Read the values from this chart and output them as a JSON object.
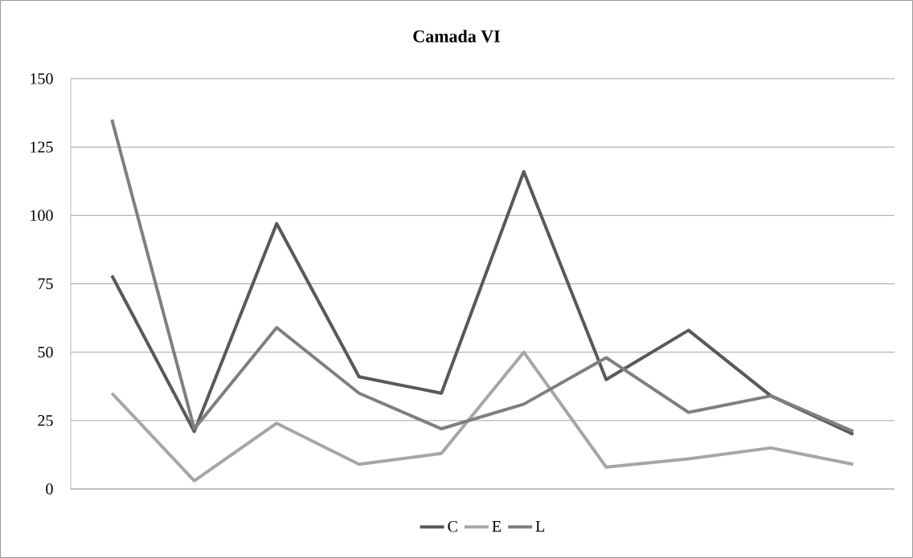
{
  "chart_data": {
    "type": "line",
    "title": "Camada VI",
    "categories": [
      null,
      null,
      null,
      null,
      null,
      null,
      null,
      null,
      null,
      null
    ],
    "series": [
      {
        "name": "C",
        "color": "#595959",
        "values": [
          78,
          21,
          97,
          41,
          35,
          116,
          40,
          58,
          34,
          20
        ]
      },
      {
        "name": "E",
        "color": "#a6a6a6",
        "values": [
          35,
          3,
          24,
          9,
          13,
          50,
          8,
          11,
          15,
          9
        ]
      },
      {
        "name": "L",
        "color": "#7f7f7f",
        "values": [
          135,
          22,
          59,
          35,
          22,
          31,
          48,
          28,
          34,
          21
        ]
      }
    ],
    "ylim": [
      0,
      150
    ],
    "yticks": [
      0,
      25,
      50,
      75,
      100,
      125,
      150
    ],
    "grid": "y",
    "legend": "bottom",
    "marker": "none",
    "line_style": "solid"
  }
}
